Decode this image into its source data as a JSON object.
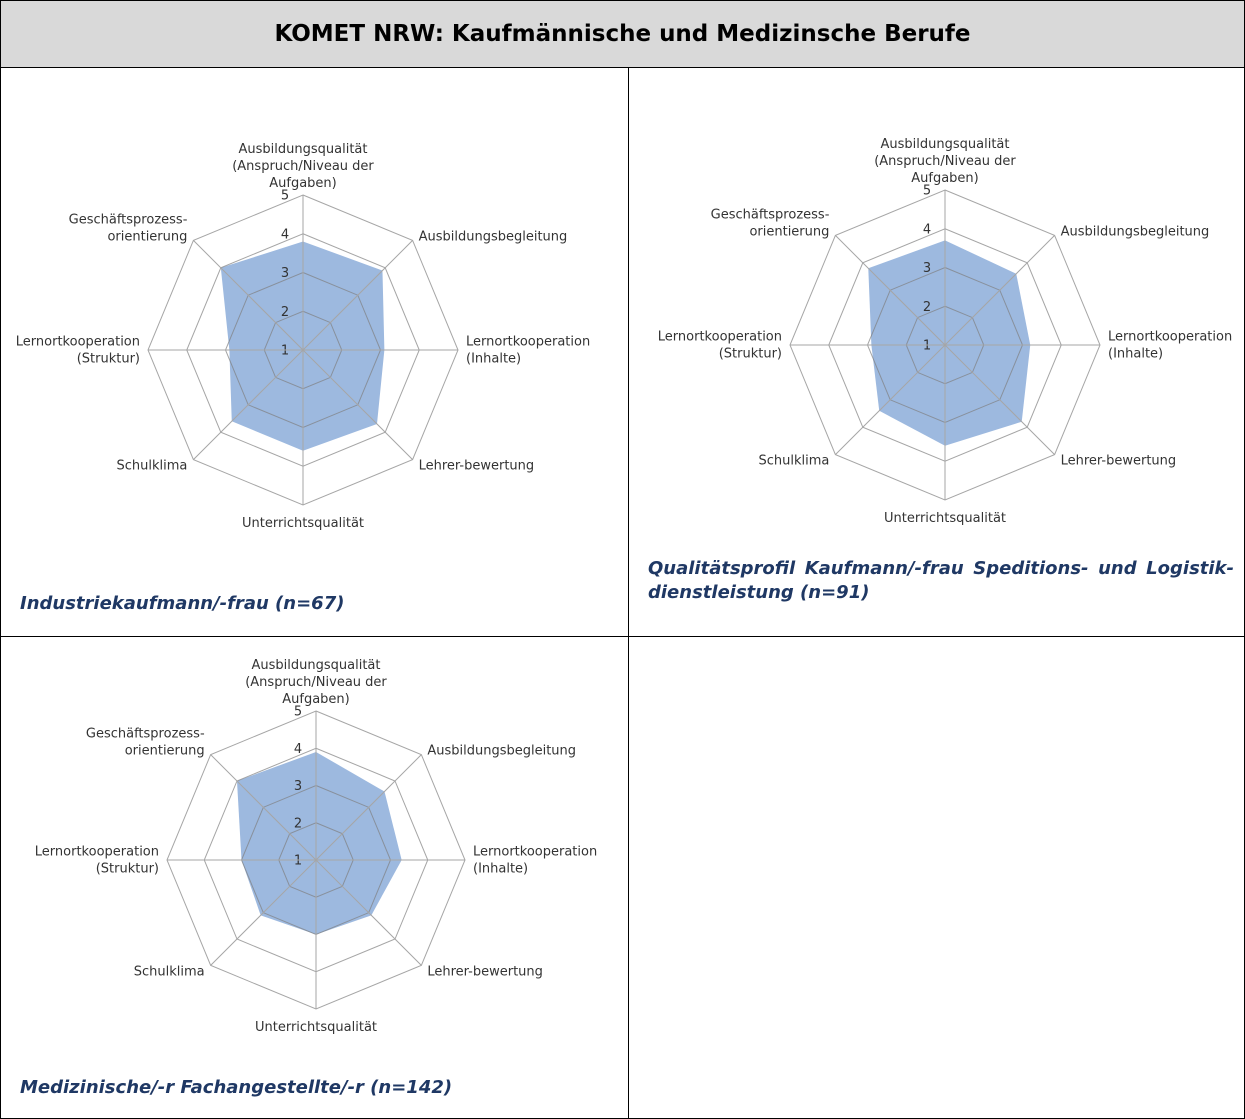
{
  "title": "KOMET NRW: Kaufmännische und Medizinsche Berufe",
  "chart_data": [
    {
      "type": "radar",
      "caption": "Industriekaufmann/-frau (n=67)",
      "categories": [
        "Ausbildungsqualität\n(Anspruch/Niveau der\nAufgaben)",
        "Ausbildungsbegleitung",
        "Lernortkooperation\n(Inhalte)",
        "Lehrer-bewertung",
        "Unterrichtsqualität",
        "Schulklima",
        "Lernortkooperation\n(Struktur)",
        "Geschäftsprozess-\norientierung"
      ],
      "values": [
        3.8,
        3.9,
        3.1,
        3.7,
        3.6,
        3.6,
        2.9,
        4.0
      ],
      "color": "#9db9df",
      "rlim": [
        1,
        5
      ],
      "rticks": [
        1,
        2,
        3,
        4,
        5
      ]
    },
    {
      "type": "radar",
      "caption": "Qualitätsprofil Kaufmann/-frau Speditions- und Logistik-dienstleistung (n=91)",
      "categories": [
        "Ausbildungsqualität\n(Anspruch/Niveau der\nAufgaben)",
        "Ausbildungsbegleitung",
        "Lernortkooperation\n(Inhalte)",
        "Lehrer-bewertung",
        "Unterrichtsqualität",
        "Schulklima",
        "Lernortkooperation\n(Struktur)",
        "Geschäftsprozess-\norientierung"
      ],
      "values": [
        3.7,
        3.6,
        3.2,
        3.8,
        3.6,
        3.4,
        2.9,
        3.8
      ],
      "color": "#9db9df",
      "rlim": [
        1,
        5
      ],
      "rticks": [
        1,
        2,
        3,
        4,
        5
      ]
    },
    {
      "type": "radar",
      "caption": "Medizinische/-r Fachangestellte/-r (n=142)",
      "categories": [
        "Ausbildungsqualität\n(Anspruch/Niveau der\nAufgaben)",
        "Ausbildungsbegleitung",
        "Lernortkooperation\n(Inhalte)",
        "Lehrer-bewertung",
        "Unterrichtsqualität",
        "Schulklima",
        "Lernortkooperation\n(Struktur)",
        "Geschäftsprozess-\norientierung"
      ],
      "values": [
        3.9,
        3.6,
        3.3,
        3.1,
        3.0,
        3.1,
        3.0,
        4.0
      ],
      "color": "#9db9df",
      "rlim": [
        1,
        5
      ],
      "rticks": [
        1,
        2,
        3,
        4,
        5
      ]
    }
  ]
}
